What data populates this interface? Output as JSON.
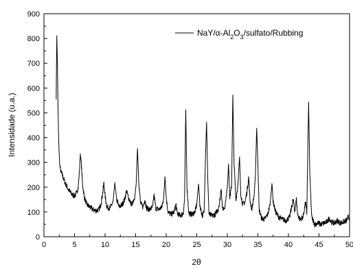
{
  "chart_data": {
    "type": "line",
    "xlabel": "2θ",
    "ylabel": "Intensidade (u.a.)",
    "xlim": [
      0,
      50
    ],
    "ylim": [
      0,
      900
    ],
    "xticks": [
      0,
      5,
      10,
      15,
      20,
      25,
      30,
      35,
      40,
      45,
      50
    ],
    "yticks": [
      0,
      100,
      200,
      300,
      400,
      500,
      600,
      700,
      800,
      900
    ],
    "legend_position": "top-right",
    "grid": false,
    "line_color": "#000000",
    "legend": {
      "base": "NaY/α-Al",
      "sub1": "2",
      "mid": "O",
      "sub2": "3",
      "tail": "/sulfato/Rubbing"
    },
    "series": [
      {
        "points": [
          [
            2.0,
            560
          ],
          [
            2.1,
            815
          ],
          [
            2.2,
            700
          ],
          [
            2.3,
            520
          ],
          [
            2.4,
            400
          ],
          [
            2.5,
            330
          ],
          [
            2.6,
            285
          ],
          [
            2.8,
            260
          ],
          [
            3.0,
            250
          ],
          [
            3.2,
            235
          ],
          [
            3.5,
            215
          ],
          [
            3.8,
            200
          ],
          [
            4.0,
            190
          ],
          [
            4.3,
            180
          ],
          [
            4.6,
            170
          ],
          [
            5.0,
            165
          ],
          [
            5.3,
            175
          ],
          [
            5.6,
            200
          ],
          [
            5.8,
            260
          ],
          [
            5.95,
            335
          ],
          [
            6.1,
            300
          ],
          [
            6.3,
            215
          ],
          [
            6.6,
            160
          ],
          [
            7.0,
            130
          ],
          [
            7.5,
            120
          ],
          [
            8.0,
            110
          ],
          [
            8.5,
            105
          ],
          [
            9.0,
            110
          ],
          [
            9.3,
            130
          ],
          [
            9.6,
            175
          ],
          [
            9.8,
            215
          ],
          [
            10.0,
            165
          ],
          [
            10.3,
            120
          ],
          [
            10.8,
            115
          ],
          [
            11.3,
            140
          ],
          [
            11.6,
            215
          ],
          [
            11.9,
            150
          ],
          [
            12.3,
            120
          ],
          [
            12.8,
            130
          ],
          [
            13.2,
            150
          ],
          [
            13.5,
            185
          ],
          [
            13.8,
            160
          ],
          [
            14.3,
            130
          ],
          [
            14.8,
            145
          ],
          [
            15.1,
            220
          ],
          [
            15.3,
            360
          ],
          [
            15.5,
            230
          ],
          [
            15.8,
            135
          ],
          [
            16.2,
            120
          ],
          [
            16.5,
            150
          ],
          [
            16.8,
            115
          ],
          [
            17.3,
            110
          ],
          [
            17.8,
            120
          ],
          [
            18.0,
            170
          ],
          [
            18.3,
            115
          ],
          [
            18.8,
            110
          ],
          [
            19.3,
            120
          ],
          [
            19.6,
            160
          ],
          [
            19.8,
            245
          ],
          [
            20.0,
            160
          ],
          [
            20.3,
            100
          ],
          [
            20.8,
            90
          ],
          [
            21.3,
            100
          ],
          [
            21.6,
            130
          ],
          [
            21.8,
            95
          ],
          [
            22.3,
            85
          ],
          [
            22.8,
            95
          ],
          [
            23.0,
            150
          ],
          [
            23.2,
            510
          ],
          [
            23.4,
            200
          ],
          [
            23.7,
            95
          ],
          [
            24.2,
            90
          ],
          [
            24.7,
            100
          ],
          [
            25.0,
            130
          ],
          [
            25.3,
            215
          ],
          [
            25.5,
            130
          ],
          [
            25.9,
            85
          ],
          [
            26.2,
            100
          ],
          [
            26.4,
            300
          ],
          [
            26.6,
            465
          ],
          [
            26.8,
            240
          ],
          [
            27.0,
            90
          ],
          [
            27.5,
            85
          ],
          [
            28.0,
            90
          ],
          [
            28.5,
            110
          ],
          [
            28.8,
            150
          ],
          [
            29.0,
            200
          ],
          [
            29.2,
            110
          ],
          [
            29.6,
            120
          ],
          [
            30.0,
            200
          ],
          [
            30.2,
            295
          ],
          [
            30.4,
            160
          ],
          [
            30.7,
            200
          ],
          [
            30.9,
            570
          ],
          [
            31.1,
            300
          ],
          [
            31.4,
            150
          ],
          [
            31.7,
            200
          ],
          [
            32.0,
            320
          ],
          [
            32.2,
            175
          ],
          [
            32.5,
            130
          ],
          [
            32.9,
            140
          ],
          [
            33.2,
            180
          ],
          [
            33.5,
            240
          ],
          [
            33.7,
            150
          ],
          [
            34.0,
            110
          ],
          [
            34.4,
            170
          ],
          [
            34.6,
            250
          ],
          [
            34.8,
            440
          ],
          [
            35.0,
            300
          ],
          [
            35.2,
            110
          ],
          [
            35.6,
            75
          ],
          [
            36.1,
            70
          ],
          [
            36.6,
            90
          ],
          [
            37.0,
            130
          ],
          [
            37.3,
            215
          ],
          [
            37.5,
            140
          ],
          [
            37.9,
            100
          ],
          [
            38.4,
            80
          ],
          [
            39.0,
            70
          ],
          [
            39.6,
            65
          ],
          [
            40.2,
            80
          ],
          [
            40.6,
            130
          ],
          [
            40.8,
            150
          ],
          [
            41.0,
            100
          ],
          [
            41.3,
            150
          ],
          [
            41.5,
            90
          ],
          [
            41.9,
            70
          ],
          [
            42.4,
            80
          ],
          [
            42.8,
            140
          ],
          [
            43.0,
            90
          ],
          [
            43.1,
            250
          ],
          [
            43.3,
            540
          ],
          [
            43.5,
            250
          ],
          [
            43.8,
            80
          ],
          [
            44.3,
            50
          ],
          [
            44.8,
            55
          ],
          [
            45.3,
            50
          ],
          [
            45.8,
            55
          ],
          [
            46.3,
            60
          ],
          [
            46.7,
            75
          ],
          [
            47.0,
            60
          ],
          [
            47.5,
            55
          ],
          [
            48.0,
            65
          ],
          [
            48.5,
            55
          ],
          [
            49.0,
            60
          ],
          [
            49.5,
            65
          ],
          [
            49.8,
            80
          ],
          [
            50.0,
            75
          ]
        ]
      }
    ]
  }
}
